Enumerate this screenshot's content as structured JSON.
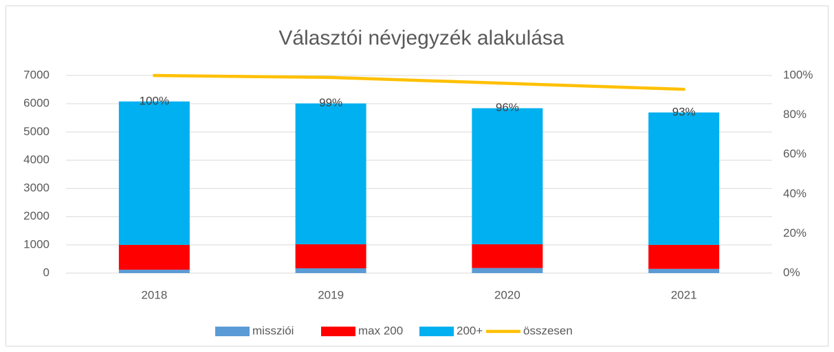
{
  "chart_data": {
    "type": "bar",
    "title": "Választói névjegyzék alakulása",
    "categories": [
      "2018",
      "2019",
      "2020",
      "2021"
    ],
    "series": [
      {
        "name": "missziói",
        "color": "#5b9bd5",
        "type": "bar",
        "values": [
          120,
          170,
          180,
          150
        ]
      },
      {
        "name": "max 200",
        "color": "#ff0000",
        "type": "bar",
        "values": [
          880,
          850,
          840,
          850
        ]
      },
      {
        "name": "200+",
        "color": "#00b0f0",
        "type": "bar",
        "values": [
          5080,
          4990,
          4820,
          4690
        ]
      },
      {
        "name": "összesen",
        "color": "#ffc000",
        "type": "line",
        "axis": "y2",
        "values": [
          100,
          99,
          96,
          93
        ],
        "value_labels": [
          "100%",
          "99%",
          "96%",
          "93%"
        ]
      }
    ],
    "ylim": [
      0,
      7000
    ],
    "yticks": [
      0,
      1000,
      2000,
      3000,
      4000,
      5000,
      6000,
      7000
    ],
    "y2lim": [
      0,
      100
    ],
    "y2ticks": [
      {
        "value": 0,
        "label": "0%"
      },
      {
        "value": 20,
        "label": "20%"
      },
      {
        "value": 40,
        "label": "40%"
      },
      {
        "value": 60,
        "label": "60%"
      },
      {
        "value": 80,
        "label": "80%"
      },
      {
        "value": 100,
        "label": "100%"
      }
    ],
    "grid": true,
    "legend": "bottom"
  }
}
